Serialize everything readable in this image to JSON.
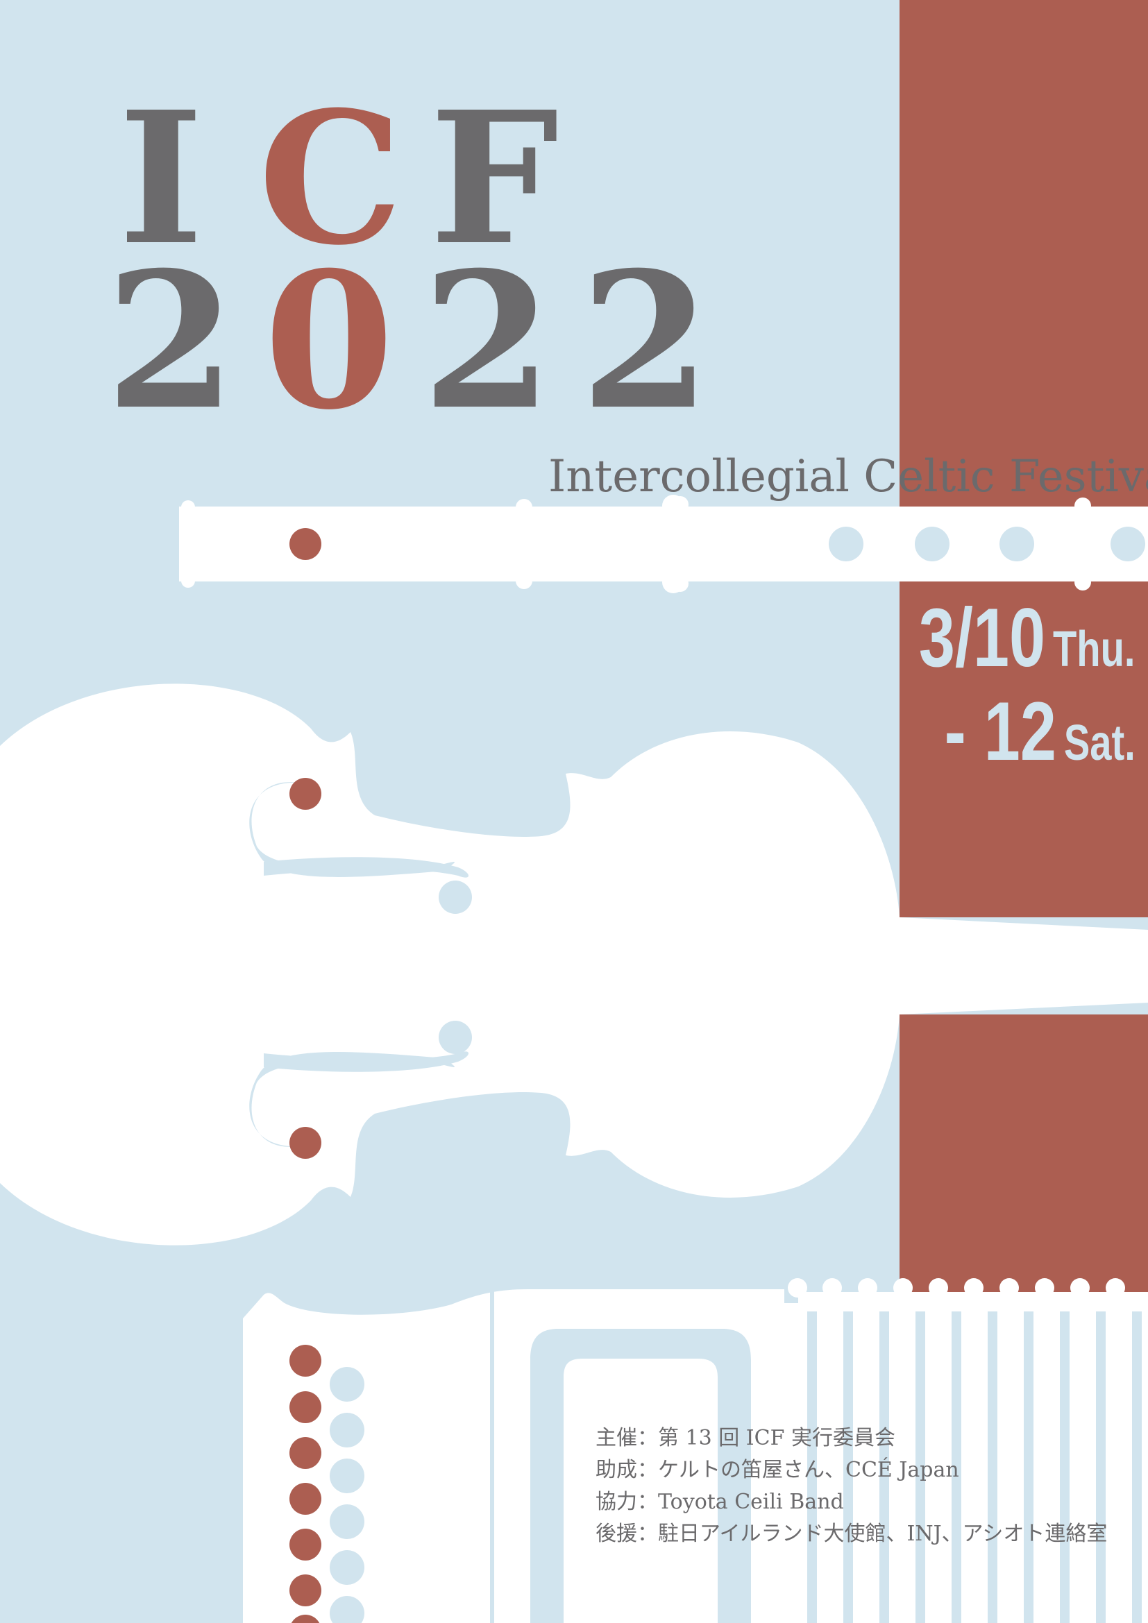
{
  "title": {
    "line1": [
      "I",
      "C",
      "F"
    ],
    "line2": [
      "2",
      "0",
      "2",
      "2"
    ]
  },
  "subtitle": "Intercollegial Celtic Festival",
  "dates": {
    "start_date": "3/10",
    "start_day": "Thu.",
    "end_date": "- 12",
    "end_day": "Sat."
  },
  "credits": [
    "主催：第 13 回 ICF 実行委員会",
    "助成：ケルトの笛屋さん、CCÉ Japan",
    "協力：Toyota Ceili Band",
    "後援：駐日アイルランド大使館、INJ、アシオト連絡室"
  ],
  "colors": {
    "background": "#d1e4ee",
    "accent": "#ac5e51",
    "text": "#6b6a6c",
    "instrument": "#ffffff"
  },
  "illustrations": [
    "tin-whistle",
    "fiddle",
    "accordion"
  ]
}
